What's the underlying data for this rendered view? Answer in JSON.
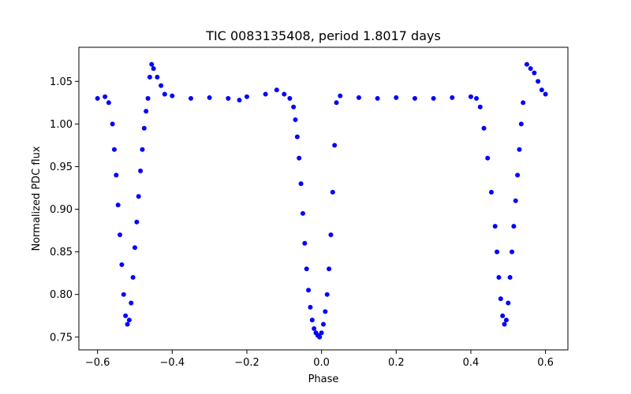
{
  "chart_data": {
    "type": "scatter",
    "title": "TIC 0083135408, period 1.8017 days",
    "xlabel": "Phase",
    "ylabel": "Normalized PDC flux",
    "xlim": [
      -0.65,
      0.66
    ],
    "ylim": [
      0.735,
      1.09
    ],
    "xticks": [
      -0.6,
      -0.4,
      -0.2,
      0.0,
      0.2,
      0.4,
      0.6
    ],
    "xtick_labels": [
      "−0.6",
      "−0.4",
      "−0.2",
      "0.0",
      "0.2",
      "0.4",
      "0.6"
    ],
    "yticks": [
      0.75,
      0.8,
      0.85,
      0.9,
      0.95,
      1.0,
      1.05
    ],
    "ytick_labels": [
      "0.75",
      "0.80",
      "0.85",
      "0.90",
      "0.95",
      "1.00",
      "1.05"
    ],
    "grid": false,
    "marker_color": "#0000ff",
    "series": [
      {
        "x": [
          -0.6,
          -0.58,
          -0.57,
          -0.56,
          -0.555,
          -0.55,
          -0.545,
          -0.54,
          -0.535,
          -0.53,
          -0.525,
          -0.52,
          -0.515,
          -0.51,
          -0.505,
          -0.5,
          -0.495,
          -0.49,
          -0.485,
          -0.48,
          -0.475,
          -0.47,
          -0.465,
          -0.46,
          -0.455,
          -0.45,
          -0.44,
          -0.43,
          -0.42,
          -0.4,
          -0.35,
          -0.3,
          -0.25,
          -0.22,
          -0.2,
          -0.15,
          -0.12,
          -0.1,
          -0.085,
          -0.075,
          -0.07,
          -0.065,
          -0.06,
          -0.055,
          -0.05,
          -0.045,
          -0.04,
          -0.035,
          -0.03,
          -0.025,
          -0.02,
          -0.015,
          -0.01,
          -0.005,
          0.0,
          0.005,
          0.01,
          0.015,
          0.02,
          0.025,
          0.03,
          0.035,
          0.04,
          0.05,
          0.1,
          0.15,
          0.2,
          0.25,
          0.3,
          0.35,
          0.4,
          0.415,
          0.425,
          0.435,
          0.445,
          0.455,
          0.465,
          0.47,
          0.475,
          0.48,
          0.485,
          0.49,
          0.495,
          0.5,
          0.505,
          0.51,
          0.515,
          0.52,
          0.525,
          0.53,
          0.535,
          0.54,
          0.55,
          0.56,
          0.57,
          0.58,
          0.59,
          0.6
        ],
        "y": [
          1.03,
          1.032,
          1.025,
          1.0,
          0.97,
          0.94,
          0.905,
          0.87,
          0.835,
          0.8,
          0.775,
          0.765,
          0.77,
          0.79,
          0.82,
          0.855,
          0.885,
          0.915,
          0.945,
          0.97,
          0.995,
          1.015,
          1.03,
          1.055,
          1.07,
          1.065,
          1.055,
          1.045,
          1.035,
          1.033,
          1.03,
          1.031,
          1.03,
          1.028,
          1.032,
          1.035,
          1.04,
          1.035,
          1.03,
          1.02,
          1.005,
          0.985,
          0.96,
          0.93,
          0.895,
          0.86,
          0.83,
          0.805,
          0.785,
          0.77,
          0.76,
          0.755,
          0.752,
          0.75,
          0.755,
          0.765,
          0.78,
          0.8,
          0.83,
          0.87,
          0.92,
          0.975,
          1.025,
          1.033,
          1.031,
          1.03,
          1.031,
          1.03,
          1.03,
          1.031,
          1.032,
          1.03,
          1.02,
          0.995,
          0.96,
          0.92,
          0.88,
          0.85,
          0.82,
          0.795,
          0.775,
          0.765,
          0.77,
          0.79,
          0.82,
          0.85,
          0.88,
          0.91,
          0.94,
          0.97,
          1.0,
          1.025,
          1.07,
          1.065,
          1.06,
          1.05,
          1.04,
          1.035
        ]
      }
    ]
  }
}
